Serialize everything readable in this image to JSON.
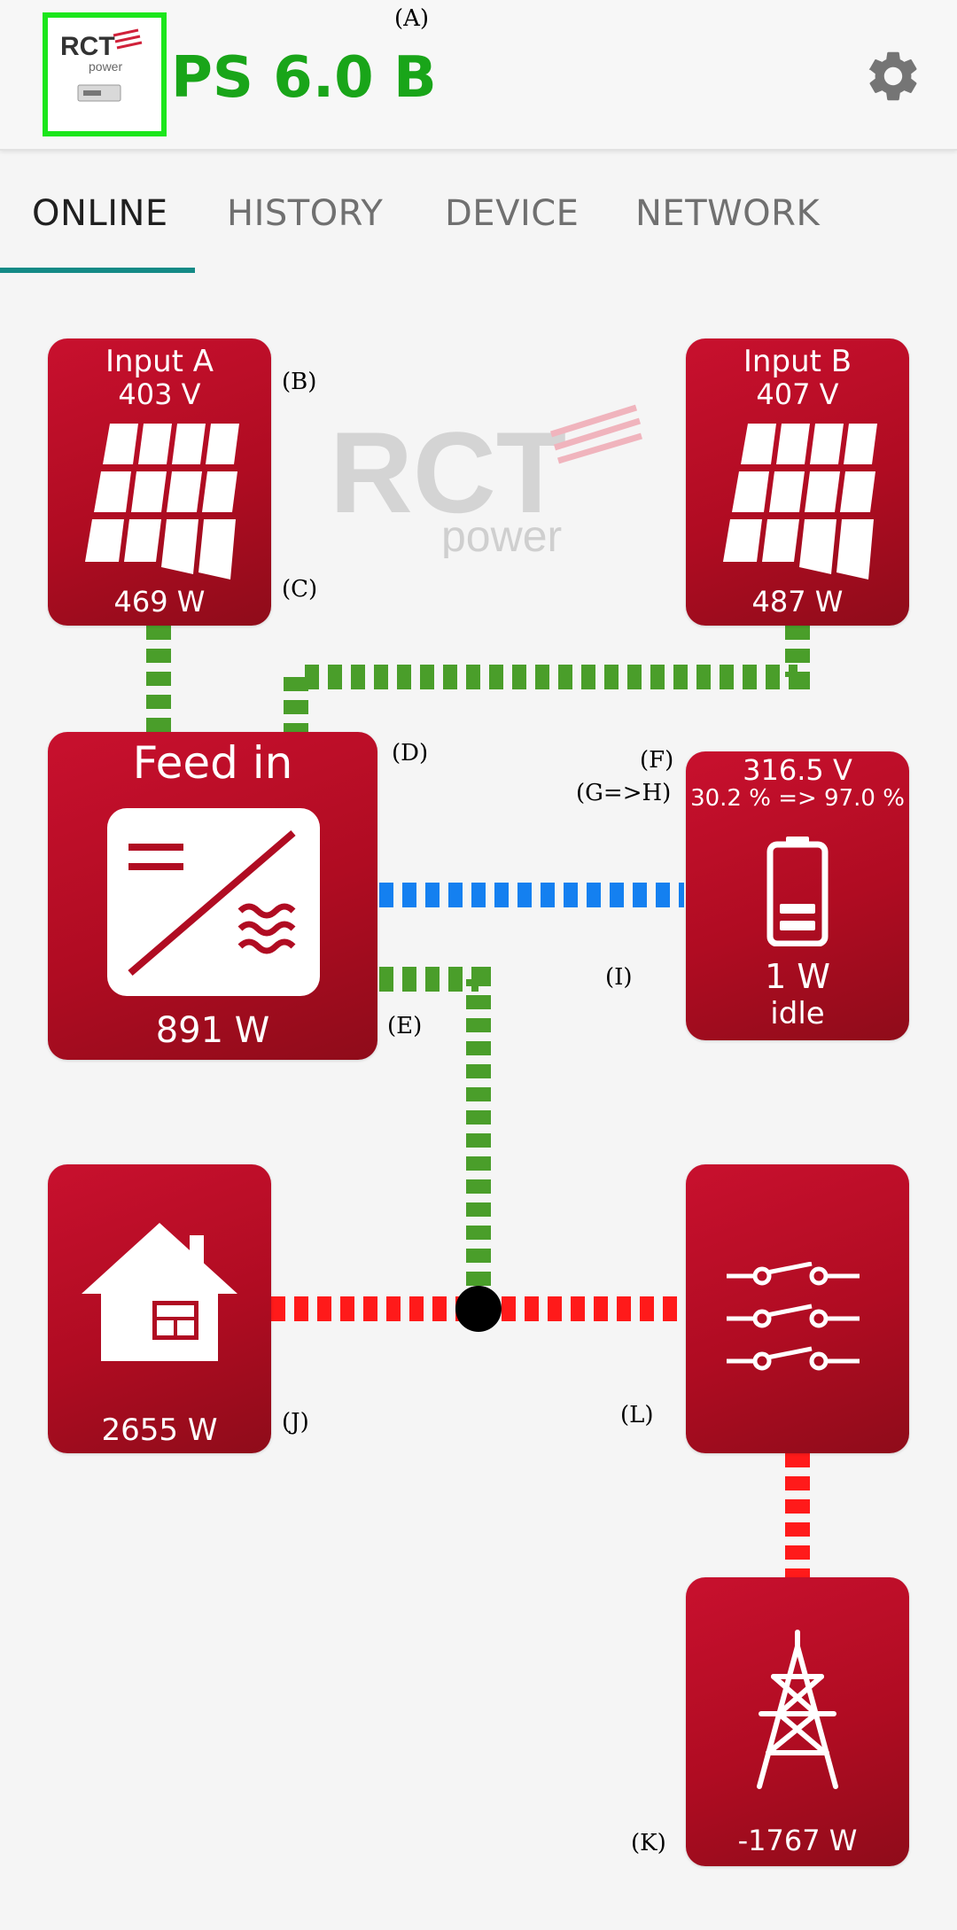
{
  "app": {
    "title": "PS 6.0 B",
    "logo_text": "RCT",
    "logo_subtext": "power",
    "logo_icon": "inverter-logo"
  },
  "settings_icon": "gear-icon",
  "tabs": [
    {
      "label": "ONLINE",
      "active": true
    },
    {
      "label": "HISTORY",
      "active": false
    },
    {
      "label": "DEVICE",
      "active": false
    },
    {
      "label": "NETWORK",
      "active": false
    }
  ],
  "watermark": {
    "text": "RCT",
    "subtext": "power"
  },
  "input_a": {
    "title": "Input A",
    "voltage": "403 V",
    "power": "469 W",
    "icon": "solar-panel-icon"
  },
  "input_b": {
    "title": "Input B",
    "voltage": "407 V",
    "power": "487 W",
    "icon": "solar-panel-icon"
  },
  "inverter": {
    "title": "Feed in",
    "power": "891 W",
    "icon": "inverter-icon"
  },
  "battery": {
    "voltage": "316.5 V",
    "soc": "30.2 % => 97.0 %",
    "power": "1 W",
    "status": "idle",
    "icon": "battery-icon"
  },
  "house": {
    "power": "2655 W",
    "icon": "house-icon"
  },
  "grid": {
    "power": "-1767 W",
    "icon": "power-tower-icon"
  },
  "switchboard": {
    "icon": "switches-icon"
  },
  "colors": {
    "tile": "#c0102b",
    "flow_pv": "#4a9e2a",
    "flow_battery": "#1480f0",
    "flow_grid": "#ff1a1a",
    "accent": "#148a86",
    "title": "#19a519"
  },
  "annotations": {
    "A": "(A)",
    "B": "(B)",
    "C": "(C)",
    "D": "(D)",
    "E": "(E)",
    "F": "(F)",
    "GH": "(G=>H)",
    "I": "(I)",
    "J": "(J)",
    "K": "(K)",
    "L": "(L)"
  }
}
